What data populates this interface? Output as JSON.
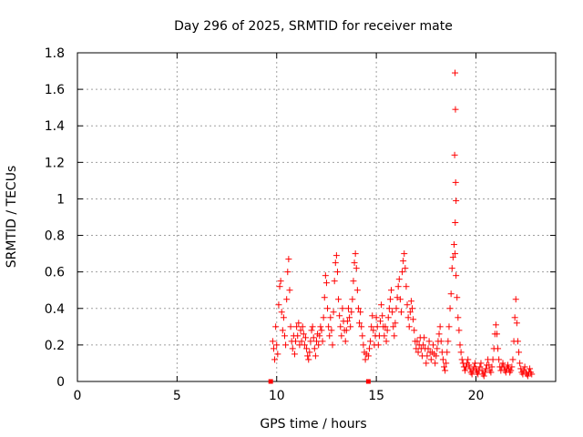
{
  "chart_data": {
    "type": "scatter",
    "title": "Day 296 of 2025, SRMTID for receiver mate",
    "xlabel": "GPS time / hours",
    "ylabel": "SRMTID / TECUs",
    "xlim": [
      0,
      24
    ],
    "ylim": [
      0,
      1.8
    ],
    "xticks": [
      0,
      5,
      10,
      15,
      20
    ],
    "xtick_labels": [
      "0",
      "5",
      "10",
      "15",
      "20"
    ],
    "yticks": [
      0,
      0.2,
      0.4,
      0.6,
      0.8,
      1.0,
      1.2,
      1.4,
      1.6,
      1.8
    ],
    "ytick_labels": [
      "0",
      "0.2",
      "0.4",
      "0.6",
      "0.8",
      "1",
      "1.2",
      "1.4",
      "1.6",
      "1.8"
    ],
    "grid": true,
    "marker": "+",
    "color": "#ff0000",
    "gap_markers": {
      "marker": "square",
      "x": [
        9.7,
        14.6
      ],
      "y": [
        0,
        0
      ]
    },
    "series": [
      {
        "name": "SRMTID",
        "points": [
          [
            9.8,
            0.22
          ],
          [
            9.85,
            0.18
          ],
          [
            9.9,
            0.12
          ],
          [
            9.95,
            0.3
          ],
          [
            10.0,
            0.2
          ],
          [
            10.05,
            0.15
          ],
          [
            10.1,
            0.42
          ],
          [
            10.15,
            0.52
          ],
          [
            10.2,
            0.55
          ],
          [
            10.25,
            0.38
          ],
          [
            10.3,
            0.28
          ],
          [
            10.35,
            0.35
          ],
          [
            10.4,
            0.25
          ],
          [
            10.45,
            0.2
          ],
          [
            10.5,
            0.45
          ],
          [
            10.55,
            0.6
          ],
          [
            10.6,
            0.67
          ],
          [
            10.65,
            0.5
          ],
          [
            10.7,
            0.3
          ],
          [
            10.75,
            0.22
          ],
          [
            10.8,
            0.18
          ],
          [
            10.85,
            0.25
          ],
          [
            10.9,
            0.15
          ],
          [
            10.95,
            0.22
          ],
          [
            11.0,
            0.3
          ],
          [
            11.05,
            0.25
          ],
          [
            11.1,
            0.32
          ],
          [
            11.15,
            0.2
          ],
          [
            11.2,
            0.28
          ],
          [
            11.25,
            0.22
          ],
          [
            11.3,
            0.3
          ],
          [
            11.35,
            0.26
          ],
          [
            11.4,
            0.2
          ],
          [
            11.45,
            0.24
          ],
          [
            11.5,
            0.18
          ],
          [
            11.55,
            0.14
          ],
          [
            11.6,
            0.12
          ],
          [
            11.65,
            0.16
          ],
          [
            11.7,
            0.22
          ],
          [
            11.75,
            0.28
          ],
          [
            11.8,
            0.3
          ],
          [
            11.85,
            0.24
          ],
          [
            11.9,
            0.18
          ],
          [
            11.95,
            0.14
          ],
          [
            12.0,
            0.22
          ],
          [
            12.05,
            0.26
          ],
          [
            12.1,
            0.2
          ],
          [
            12.15,
            0.25
          ],
          [
            12.2,
            0.3
          ],
          [
            12.25,
            0.28
          ],
          [
            12.3,
            0.22
          ],
          [
            12.35,
            0.35
          ],
          [
            12.4,
            0.46
          ],
          [
            12.45,
            0.58
          ],
          [
            12.5,
            0.54
          ],
          [
            12.55,
            0.4
          ],
          [
            12.6,
            0.3
          ],
          [
            12.65,
            0.25
          ],
          [
            12.7,
            0.35
          ],
          [
            12.75,
            0.28
          ],
          [
            12.8,
            0.2
          ],
          [
            12.85,
            0.38
          ],
          [
            12.9,
            0.55
          ],
          [
            12.95,
            0.65
          ],
          [
            13.0,
            0.69
          ],
          [
            13.05,
            0.6
          ],
          [
            13.1,
            0.45
          ],
          [
            13.15,
            0.36
          ],
          [
            13.2,
            0.3
          ],
          [
            13.25,
            0.25
          ],
          [
            13.3,
            0.4
          ],
          [
            13.35,
            0.33
          ],
          [
            13.4,
            0.28
          ],
          [
            13.45,
            0.22
          ],
          [
            13.5,
            0.28
          ],
          [
            13.55,
            0.33
          ],
          [
            13.6,
            0.4
          ],
          [
            13.65,
            0.35
          ],
          [
            13.7,
            0.3
          ],
          [
            13.75,
            0.38
          ],
          [
            13.8,
            0.45
          ],
          [
            13.85,
            0.55
          ],
          [
            13.9,
            0.65
          ],
          [
            13.95,
            0.7
          ],
          [
            14.0,
            0.62
          ],
          [
            14.05,
            0.5
          ],
          [
            14.1,
            0.4
          ],
          [
            14.15,
            0.32
          ],
          [
            14.2,
            0.38
          ],
          [
            14.25,
            0.3
          ],
          [
            14.3,
            0.25
          ],
          [
            14.35,
            0.2
          ],
          [
            14.4,
            0.16
          ],
          [
            14.45,
            0.12
          ],
          [
            14.5,
            0.15
          ],
          [
            14.6,
            0.14
          ],
          [
            14.65,
            0.18
          ],
          [
            14.7,
            0.22
          ],
          [
            14.75,
            0.3
          ],
          [
            14.8,
            0.36
          ],
          [
            14.85,
            0.28
          ],
          [
            14.9,
            0.2
          ],
          [
            14.95,
            0.25
          ],
          [
            15.0,
            0.35
          ],
          [
            15.05,
            0.3
          ],
          [
            15.1,
            0.2
          ],
          [
            15.15,
            0.25
          ],
          [
            15.2,
            0.33
          ],
          [
            15.25,
            0.42
          ],
          [
            15.3,
            0.36
          ],
          [
            15.35,
            0.3
          ],
          [
            15.4,
            0.25
          ],
          [
            15.45,
            0.3
          ],
          [
            15.5,
            0.22
          ],
          [
            15.55,
            0.28
          ],
          [
            15.6,
            0.35
          ],
          [
            15.65,
            0.4
          ],
          [
            15.7,
            0.45
          ],
          [
            15.75,
            0.5
          ],
          [
            15.8,
            0.38
          ],
          [
            15.85,
            0.3
          ],
          [
            15.9,
            0.25
          ],
          [
            15.95,
            0.32
          ],
          [
            16.0,
            0.4
          ],
          [
            16.05,
            0.46
          ],
          [
            16.1,
            0.52
          ],
          [
            16.15,
            0.56
          ],
          [
            16.2,
            0.45
          ],
          [
            16.25,
            0.38
          ],
          [
            16.3,
            0.6
          ],
          [
            16.35,
            0.66
          ],
          [
            16.4,
            0.7
          ],
          [
            16.45,
            0.62
          ],
          [
            16.5,
            0.52
          ],
          [
            16.55,
            0.42
          ],
          [
            16.6,
            0.35
          ],
          [
            16.65,
            0.3
          ],
          [
            16.7,
            0.38
          ],
          [
            16.75,
            0.44
          ],
          [
            16.8,
            0.4
          ],
          [
            16.85,
            0.34
          ],
          [
            16.9,
            0.28
          ],
          [
            16.95,
            0.22
          ],
          [
            17.0,
            0.18
          ],
          [
            17.05,
            0.22
          ],
          [
            17.1,
            0.16
          ],
          [
            17.15,
            0.2
          ],
          [
            17.2,
            0.24
          ],
          [
            17.25,
            0.18
          ],
          [
            17.3,
            0.14
          ],
          [
            17.35,
            0.2
          ],
          [
            17.4,
            0.24
          ],
          [
            17.45,
            0.18
          ],
          [
            17.5,
            0.1
          ],
          [
            17.55,
            0.14
          ],
          [
            17.6,
            0.18
          ],
          [
            17.65,
            0.22
          ],
          [
            17.7,
            0.16
          ],
          [
            17.75,
            0.12
          ],
          [
            17.8,
            0.16
          ],
          [
            17.85,
            0.2
          ],
          [
            17.9,
            0.15
          ],
          [
            17.95,
            0.1
          ],
          [
            18.0,
            0.14
          ],
          [
            18.05,
            0.18
          ],
          [
            18.1,
            0.22
          ],
          [
            18.15,
            0.26
          ],
          [
            18.2,
            0.3
          ],
          [
            18.25,
            0.22
          ],
          [
            18.3,
            0.16
          ],
          [
            18.35,
            0.12
          ],
          [
            18.4,
            0.08
          ],
          [
            18.45,
            0.06
          ],
          [
            18.5,
            0.1
          ],
          [
            18.55,
            0.16
          ],
          [
            18.6,
            0.22
          ],
          [
            18.65,
            0.3
          ],
          [
            18.7,
            0.4
          ],
          [
            18.75,
            0.48
          ],
          [
            18.8,
            0.62
          ],
          [
            18.85,
            0.68
          ],
          [
            18.9,
            0.75
          ],
          [
            18.95,
            0.7
          ],
          [
            19.0,
            0.58
          ],
          [
            19.05,
            0.46
          ],
          [
            19.1,
            0.35
          ],
          [
            19.15,
            0.28
          ],
          [
            19.2,
            0.2
          ],
          [
            19.25,
            0.16
          ],
          [
            19.3,
            0.12
          ],
          [
            19.35,
            0.1
          ],
          [
            19.4,
            0.08
          ],
          [
            19.45,
            0.06
          ],
          [
            19.5,
            0.08
          ],
          [
            19.55,
            0.1
          ],
          [
            19.6,
            0.12
          ],
          [
            19.65,
            0.09
          ],
          [
            19.7,
            0.07
          ],
          [
            19.75,
            0.05
          ],
          [
            19.8,
            0.04
          ],
          [
            19.85,
            0.06
          ],
          [
            19.9,
            0.08
          ],
          [
            19.95,
            0.1
          ],
          [
            20.0,
            0.07
          ],
          [
            20.05,
            0.05
          ],
          [
            20.1,
            0.04
          ],
          [
            20.15,
            0.06
          ],
          [
            20.2,
            0.08
          ],
          [
            20.25,
            0.1
          ],
          [
            20.3,
            0.06
          ],
          [
            20.35,
            0.04
          ],
          [
            20.4,
            0.03
          ],
          [
            20.45,
            0.05
          ],
          [
            20.5,
            0.07
          ],
          [
            20.55,
            0.09
          ],
          [
            20.6,
            0.12
          ],
          [
            20.65,
            0.09
          ],
          [
            20.7,
            0.06
          ],
          [
            20.75,
            0.05
          ],
          [
            20.8,
            0.08
          ],
          [
            20.85,
            0.12
          ],
          [
            20.9,
            0.18
          ],
          [
            20.95,
            0.26
          ],
          [
            21.0,
            0.31
          ],
          [
            21.05,
            0.26
          ],
          [
            21.1,
            0.18
          ],
          [
            21.15,
            0.12
          ],
          [
            21.2,
            0.08
          ],
          [
            21.25,
            0.06
          ],
          [
            21.3,
            0.08
          ],
          [
            21.35,
            0.1
          ],
          [
            21.4,
            0.08
          ],
          [
            21.45,
            0.06
          ],
          [
            21.5,
            0.05
          ],
          [
            21.55,
            0.07
          ],
          [
            21.6,
            0.09
          ],
          [
            21.65,
            0.07
          ],
          [
            21.7,
            0.05
          ],
          [
            21.75,
            0.06
          ],
          [
            21.8,
            0.08
          ],
          [
            21.85,
            0.12
          ],
          [
            21.9,
            0.22
          ],
          [
            21.95,
            0.35
          ],
          [
            22.0,
            0.45
          ],
          [
            22.05,
            0.32
          ],
          [
            22.1,
            0.22
          ],
          [
            22.15,
            0.16
          ],
          [
            22.2,
            0.1
          ],
          [
            22.25,
            0.07
          ],
          [
            22.3,
            0.05
          ],
          [
            22.35,
            0.04
          ],
          [
            22.4,
            0.06
          ],
          [
            22.45,
            0.08
          ],
          [
            22.5,
            0.05
          ],
          [
            22.55,
            0.04
          ],
          [
            22.6,
            0.03
          ],
          [
            22.65,
            0.05
          ],
          [
            22.7,
            0.07
          ],
          [
            22.75,
            0.05
          ],
          [
            22.8,
            0.04
          ],
          [
            18.95,
            1.69
          ],
          [
            18.97,
            1.49
          ],
          [
            18.93,
            1.24
          ],
          [
            18.98,
            1.09
          ],
          [
            19.0,
            0.99
          ],
          [
            18.96,
            0.87
          ]
        ]
      }
    ]
  }
}
